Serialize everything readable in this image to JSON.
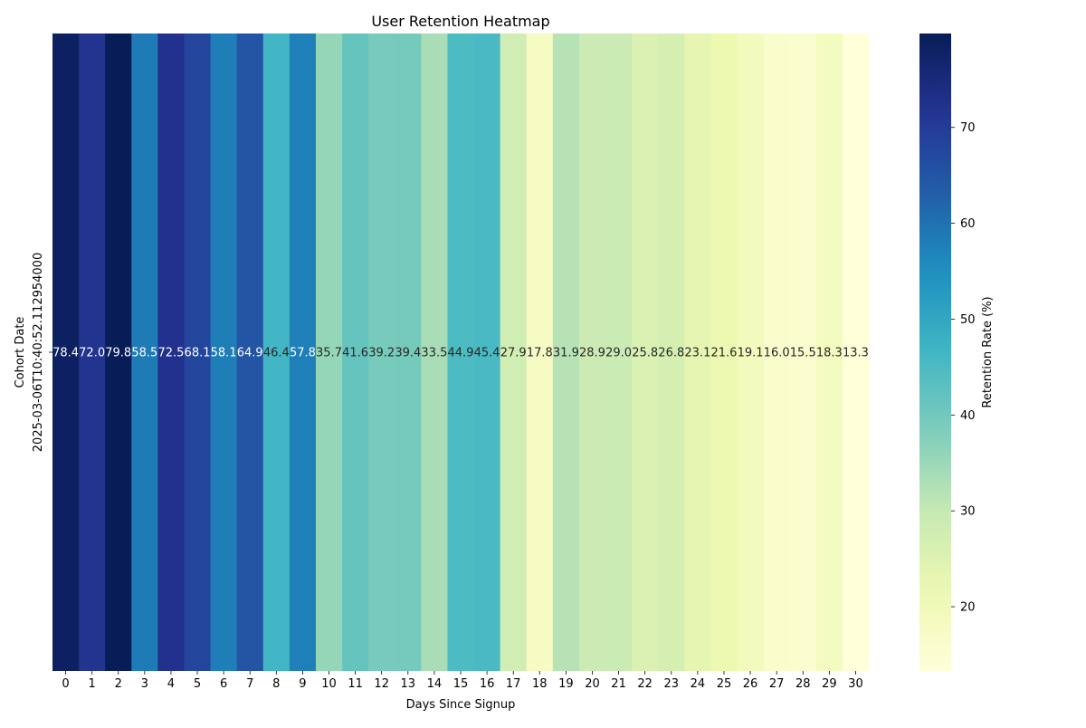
{
  "chart_data": {
    "type": "heatmap",
    "title": "User Retention Heatmap",
    "xlabel": "Days Since Signup",
    "ylabel": "Cohort Date",
    "x_categories": [
      "0",
      "1",
      "2",
      "3",
      "4",
      "5",
      "6",
      "7",
      "8",
      "9",
      "10",
      "11",
      "12",
      "13",
      "14",
      "15",
      "16",
      "17",
      "18",
      "19",
      "20",
      "21",
      "22",
      "23",
      "24",
      "25",
      "26",
      "27",
      "28",
      "29",
      "30"
    ],
    "y_categories": [
      "2025-03-06T10:40:52.112954000"
    ],
    "values": [
      [
        78.4,
        72.0,
        79.8,
        58.5,
        72.5,
        68.1,
        58.1,
        64.9,
        46.4,
        57.8,
        35.7,
        41.6,
        39.2,
        39.4,
        33.5,
        44.9,
        45.4,
        27.9,
        17.8,
        31.9,
        28.9,
        29.0,
        25.8,
        26.8,
        23.1,
        21.6,
        19.1,
        16.0,
        15.5,
        18.3,
        13.3
      ]
    ],
    "colormap": "YlGnBu",
    "colorbar": {
      "label": "Retention Rate (%)",
      "min": 13.3,
      "max": 79.8,
      "ticks": [
        20,
        30,
        40,
        50,
        60,
        70
      ]
    },
    "grid": false,
    "annotations": true
  }
}
